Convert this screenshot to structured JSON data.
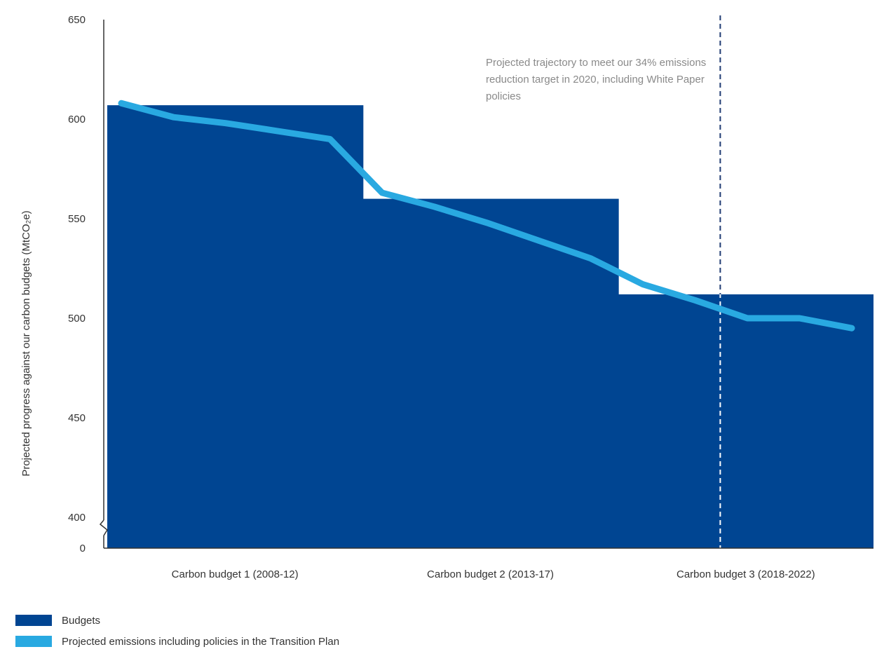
{
  "chart_data": {
    "type": "area",
    "ylabel": "Projected progress against our carbon budgets (MtCO₂e)",
    "yticks": [
      650,
      600,
      550,
      500,
      450,
      400,
      0
    ],
    "ylim": [
      390,
      650
    ],
    "axis_break": "400 → 0",
    "categories": [
      "Carbon budget 1 (2008-12)",
      "Carbon budget 2 (2013-17)",
      "Carbon budget 3 (2018-2022)"
    ],
    "budgets": [
      {
        "name": "Carbon budget 1 (2008-12)",
        "value": 607
      },
      {
        "name": "Carbon budget 2 (2013-17)",
        "value": 560
      },
      {
        "name": "Carbon budget 3 (2018-2022)",
        "value": 512
      }
    ],
    "series": [
      {
        "name": "Projected emissions including policies in the Transition Plan",
        "x": [
          2008,
          2009,
          2010,
          2011,
          2012,
          2013,
          2014,
          2015,
          2016,
          2017,
          2018,
          2019,
          2020,
          2021,
          2022
        ],
        "values": [
          608,
          601,
          598,
          594,
          590,
          563,
          556,
          548,
          539,
          530,
          517,
          509,
          500,
          500,
          495
        ]
      }
    ],
    "reference_line": {
      "x": 2020,
      "style": "dashed"
    },
    "annotation": "Projected trajectory to meet our 34% emissions reduction target in 2020, including White Paper policies",
    "legend": [
      {
        "label": "Budgets",
        "color": "#004592"
      },
      {
        "label": "Projected emissions including policies in the Transition Plan",
        "color": "#29a9e1"
      }
    ],
    "legend_position": "bottom-left",
    "grid": false
  }
}
